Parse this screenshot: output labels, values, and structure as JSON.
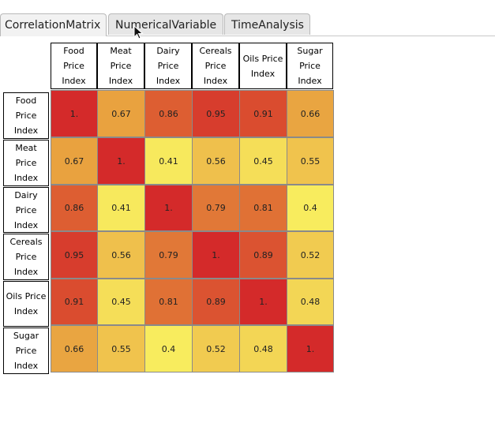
{
  "tabs": [
    {
      "label": "CorrelationMatrix",
      "active": true
    },
    {
      "label": "NumericalVariable",
      "active": false
    },
    {
      "label": "TimeAnalysis",
      "active": false
    }
  ],
  "matrix": {
    "variables": [
      "Food\nPrice\nIndex",
      "Meat\nPrice\nIndex",
      "Dairy\nPrice\nIndex",
      "Cereals\nPrice\nIndex",
      "Oils Price\nIndex",
      "Sugar\nPrice\nIndex"
    ],
    "values": [
      [
        "1.",
        "0.67",
        "0.86",
        "0.95",
        "0.91",
        "0.66"
      ],
      [
        "0.67",
        "1.",
        "0.41",
        "0.56",
        "0.45",
        "0.55"
      ],
      [
        "0.86",
        "0.41",
        "1.",
        "0.79",
        "0.81",
        "0.4"
      ],
      [
        "0.95",
        "0.56",
        "0.79",
        "1.",
        "0.89",
        "0.52"
      ],
      [
        "0.91",
        "0.45",
        "0.81",
        "0.89",
        "1.",
        "0.48"
      ],
      [
        "0.66",
        "0.55",
        "0.4",
        "0.52",
        "0.48",
        "1."
      ]
    ],
    "color_scale": {
      "low": "#f8ec5e",
      "mid": "#e79a3c",
      "high": "#d42a2a"
    }
  }
}
